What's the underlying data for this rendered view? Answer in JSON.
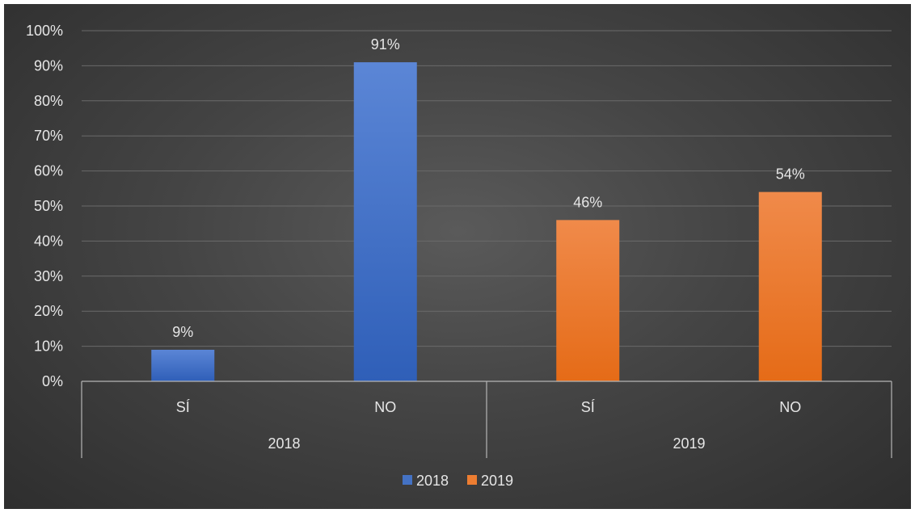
{
  "chart_data": {
    "type": "bar",
    "groups": [
      {
        "label": "2018",
        "categories": [
          "SÍ",
          "NO"
        ]
      },
      {
        "label": "2019",
        "categories": [
          "SÍ",
          "NO"
        ]
      }
    ],
    "series": [
      {
        "name": "2018",
        "values": [
          9,
          91,
          null,
          null
        ],
        "value_labels": [
          "9%",
          "91%",
          "",
          ""
        ]
      },
      {
        "name": "2019",
        "values": [
          null,
          null,
          46,
          54
        ],
        "value_labels": [
          "",
          "",
          "46%",
          "54%"
        ]
      }
    ],
    "y_ticks": [
      "0%",
      "10%",
      "20%",
      "30%",
      "40%",
      "50%",
      "60%",
      "70%",
      "80%",
      "90%",
      "100%"
    ],
    "ylim": [
      0,
      100
    ],
    "grid": true,
    "legend": "bottom",
    "colors": {
      "2018": "#4472C4",
      "2019": "#ED7D31"
    }
  }
}
